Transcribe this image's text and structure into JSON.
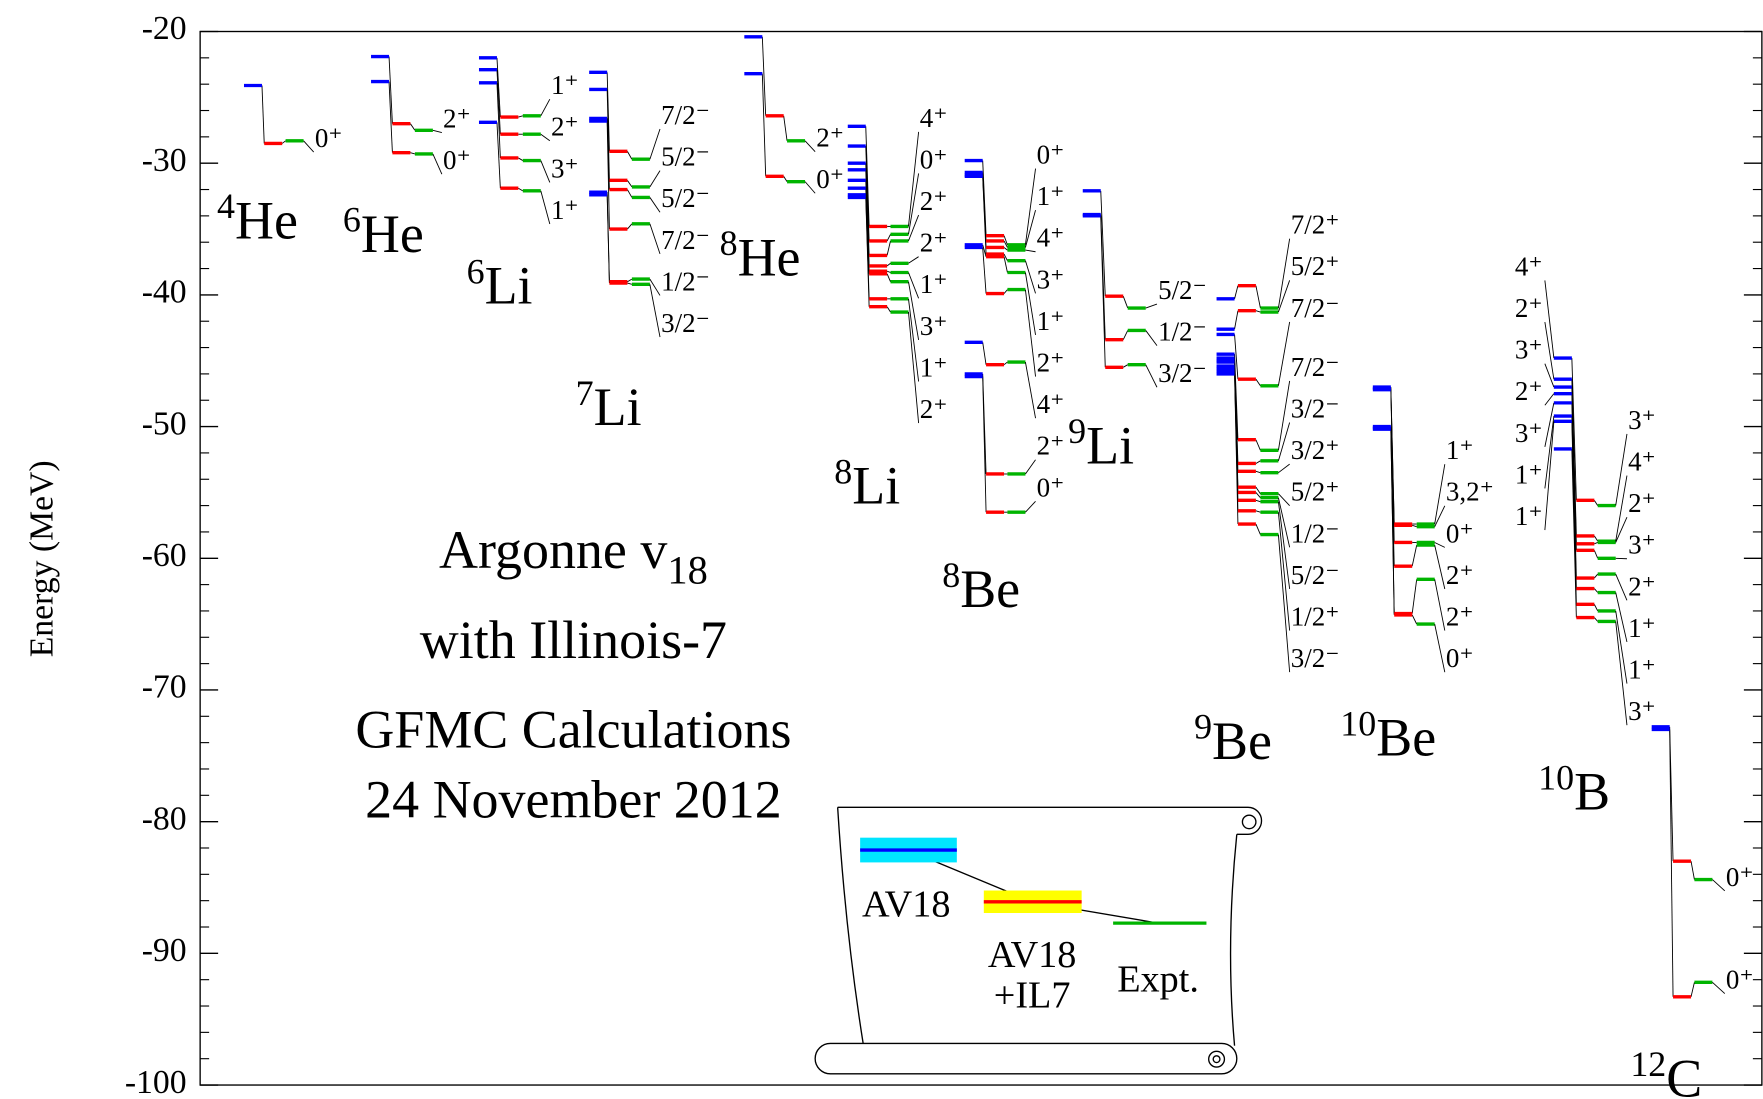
{
  "chart_data": {
    "type": "level",
    "ylabel": "Energy (MeV)",
    "ylim": [
      -100,
      -20
    ],
    "yticks": [
      -100,
      -90,
      -80,
      -70,
      -60,
      -50,
      -40,
      -30,
      -20
    ],
    "minor_yticks": [
      -98,
      -96,
      -94,
      -92,
      -88,
      -86,
      -84,
      -82,
      -78,
      -76,
      -74,
      -72,
      -68,
      -66,
      -64,
      -62,
      -58,
      -56,
      -54,
      -52,
      -48,
      -46,
      -44,
      -42,
      -38,
      -36,
      -34,
      -32,
      -28,
      -26,
      -24,
      -22
    ],
    "annotation": {
      "line1": "Argonne v",
      "line1_sub": "18",
      "line2": "with Illinois-7",
      "line3": "GFMC Calculations",
      "line4": "24 November 2012"
    },
    "legend": [
      {
        "lines": [
          "AV18"
        ],
        "color": "#0000ff",
        "highlight": "#00e5ff"
      },
      {
        "lines": [
          "AV18",
          "+IL7"
        ],
        "color": "#ff0000",
        "highlight": "#ffff00"
      },
      {
        "lines": [
          "Expt."
        ],
        "color": "#00b400"
      }
    ],
    "nuclei": [
      {
        "mass": "4",
        "symbol": "He",
        "av18": [
          -24.1
        ],
        "il7": [
          -28.5
        ],
        "expt": [
          -28.3
        ],
        "spins": [
          "0⁺"
        ]
      },
      {
        "mass": "6",
        "symbol": "He",
        "av18": [
          -21.9,
          -23.8
        ],
        "il7": [
          -27.0,
          -29.2
        ],
        "expt": [
          -27.5,
          -29.3
        ],
        "spins": [
          "2⁺",
          "0⁺"
        ]
      },
      {
        "mass": "6",
        "symbol": "Li",
        "av18": [
          -22.0,
          -22.9,
          -23.9,
          -26.9
        ],
        "il7": [
          -26.5,
          -27.8,
          -29.6,
          -31.9
        ],
        "expt": [
          -26.4,
          -27.8,
          -29.8,
          -32.1
        ],
        "spins": [
          "1⁺",
          "2⁺",
          "3⁺",
          "1⁺"
        ]
      },
      {
        "mass": "7",
        "symbol": "Li",
        "av18": [
          -23.1,
          -24.4,
          -26.6,
          -26.8,
          -32.2,
          -32.4
        ],
        "il7": [
          -29.1,
          -31.3,
          -32.0,
          -35.0,
          -39.0,
          -39.1
        ],
        "expt": [
          -29.7,
          -31.8,
          -32.6,
          -34.6,
          -38.8,
          -39.2
        ],
        "spins": [
          "7/2⁻",
          "5/2⁻",
          "5/2⁻",
          "7/2⁻",
          "1/2⁻",
          "3/2⁻"
        ]
      },
      {
        "mass": "8",
        "symbol": "He",
        "av18": [
          -20.4,
          -23.2
        ],
        "il7": [
          -26.4,
          -31.0
        ],
        "expt": [
          -28.3,
          -31.4
        ],
        "spins": [
          "2⁺",
          "0⁺"
        ]
      },
      {
        "mass": "8",
        "symbol": "Li",
        "av18": [
          -27.2,
          -28.7,
          -30.0,
          -30.5,
          -31.3,
          -31.9,
          -32.4,
          -32.6
        ],
        "il7": [
          -34.8,
          -35.9,
          -37.0,
          -37.8,
          -38.2,
          -38.4,
          -40.3,
          -40.9
        ],
        "expt": [
          -34.8,
          -35.4,
          -35.9,
          -37.6,
          -38.3,
          -39.0,
          -40.3,
          -41.3
        ],
        "spins": [
          "4⁺",
          "0⁺",
          "2⁺",
          "2⁺",
          "1⁺",
          "3⁺",
          "1⁺",
          "2⁺"
        ]
      },
      {
        "mass": "8",
        "symbol": "Be",
        "av18": [
          -29.8,
          -30.7,
          -30.9,
          -31.0,
          -36.2,
          -36.4,
          -43.6,
          -46.0,
          -46.2
        ],
        "il7": [
          -35.5,
          -35.9,
          -36.4,
          -36.9,
          -37.1,
          -39.9,
          -45.3,
          -53.6,
          -56.5
        ],
        "expt": [
          -36.2,
          -36.4,
          -36.6,
          -37.4,
          -38.3,
          -39.6,
          -45.1,
          -53.6,
          -56.5
        ],
        "spins": [
          "0⁺",
          "1⁺",
          "4⁺",
          "3⁺",
          "1⁺",
          "2⁺",
          "4⁺",
          "2⁺",
          "0⁺"
        ]
      },
      {
        "mass": "9",
        "symbol": "Li",
        "av18": [
          -32.1,
          -33.9,
          -34.0
        ],
        "il7": [
          -40.1,
          -43.4,
          -45.5
        ],
        "expt": [
          -41.0,
          -42.7,
          -45.3
        ],
        "spins": [
          "5/2⁻",
          "1/2⁻",
          "3/2⁻"
        ]
      },
      {
        "mass": "9",
        "symbol": "Be",
        "av18": [
          -40.3,
          -42.6,
          -43.0,
          -44.5,
          -44.8,
          -45.0,
          -45.1,
          -45.4,
          -45.6,
          -45.8,
          -46.0
        ],
        "il7": [
          -39.3,
          -41.2,
          -46.4,
          -51.0,
          -52.8,
          -53.4,
          -54.6,
          -55.0,
          -55.6,
          -56.4,
          -57.4
        ],
        "expt": [
          -41.0,
          -41.3,
          -46.9,
          -51.8,
          -52.6,
          -53.5,
          -55.1,
          -55.4,
          -55.7,
          -56.5,
          -58.2
        ],
        "spins": [
          "7/2⁺",
          "5/2⁺",
          "7/2⁻",
          "7/2⁻",
          "3/2⁻",
          "3/2⁺",
          "5/2⁺",
          "1/2⁻",
          "5/2⁻",
          "1/2⁺",
          "3/2⁻"
        ]
      },
      {
        "mass": "10",
        "symbol": "Be",
        "av18": [
          -47.0,
          -47.1,
          -47.2,
          -50.0,
          -50.1,
          -50.2
        ],
        "il7": [
          -57.4,
          -57.5,
          -58.8,
          -60.6,
          -64.2,
          -64.3
        ],
        "expt": [
          -57.4,
          -57.6,
          -58.8,
          -59.0,
          -61.6,
          -65.0
        ],
        "spins": [
          "1⁺",
          "3,2⁺",
          "0⁺",
          "2⁺",
          "2⁺",
          "0⁺"
        ]
      },
      {
        "mass": "10",
        "symbol": "B",
        "av18": [
          -44.8,
          -46.4,
          -47.0,
          -47.5,
          -48.2,
          -49.2,
          -49.6,
          -51.7
        ],
        "il7": [
          -55.6,
          -58.3,
          -58.9,
          -59.4,
          -61.5,
          -62.3,
          -63.5,
          -64.5
        ],
        "expt": [
          -56.0,
          -58.7,
          -58.8,
          -60.0,
          -61.2,
          -62.6,
          -64.0,
          -64.8
        ],
        "spins": [
          "3⁺",
          "4⁺",
          "2⁺",
          "3⁺",
          "2⁺",
          "1⁺",
          "1⁺",
          "3⁺"
        ],
        "av18_spins": [
          "4⁺",
          "2⁺",
          "3⁺",
          "2⁺",
          "3⁺",
          "1⁺",
          "1⁺",
          null
        ]
      },
      {
        "mass": "12",
        "symbol": "C",
        "av18": [
          -72.8,
          -73.0
        ],
        "il7": [
          -83.0,
          -93.3
        ],
        "expt": [
          -84.4,
          -92.2
        ],
        "spins": [
          "0⁺",
          "0⁺"
        ]
      }
    ]
  }
}
